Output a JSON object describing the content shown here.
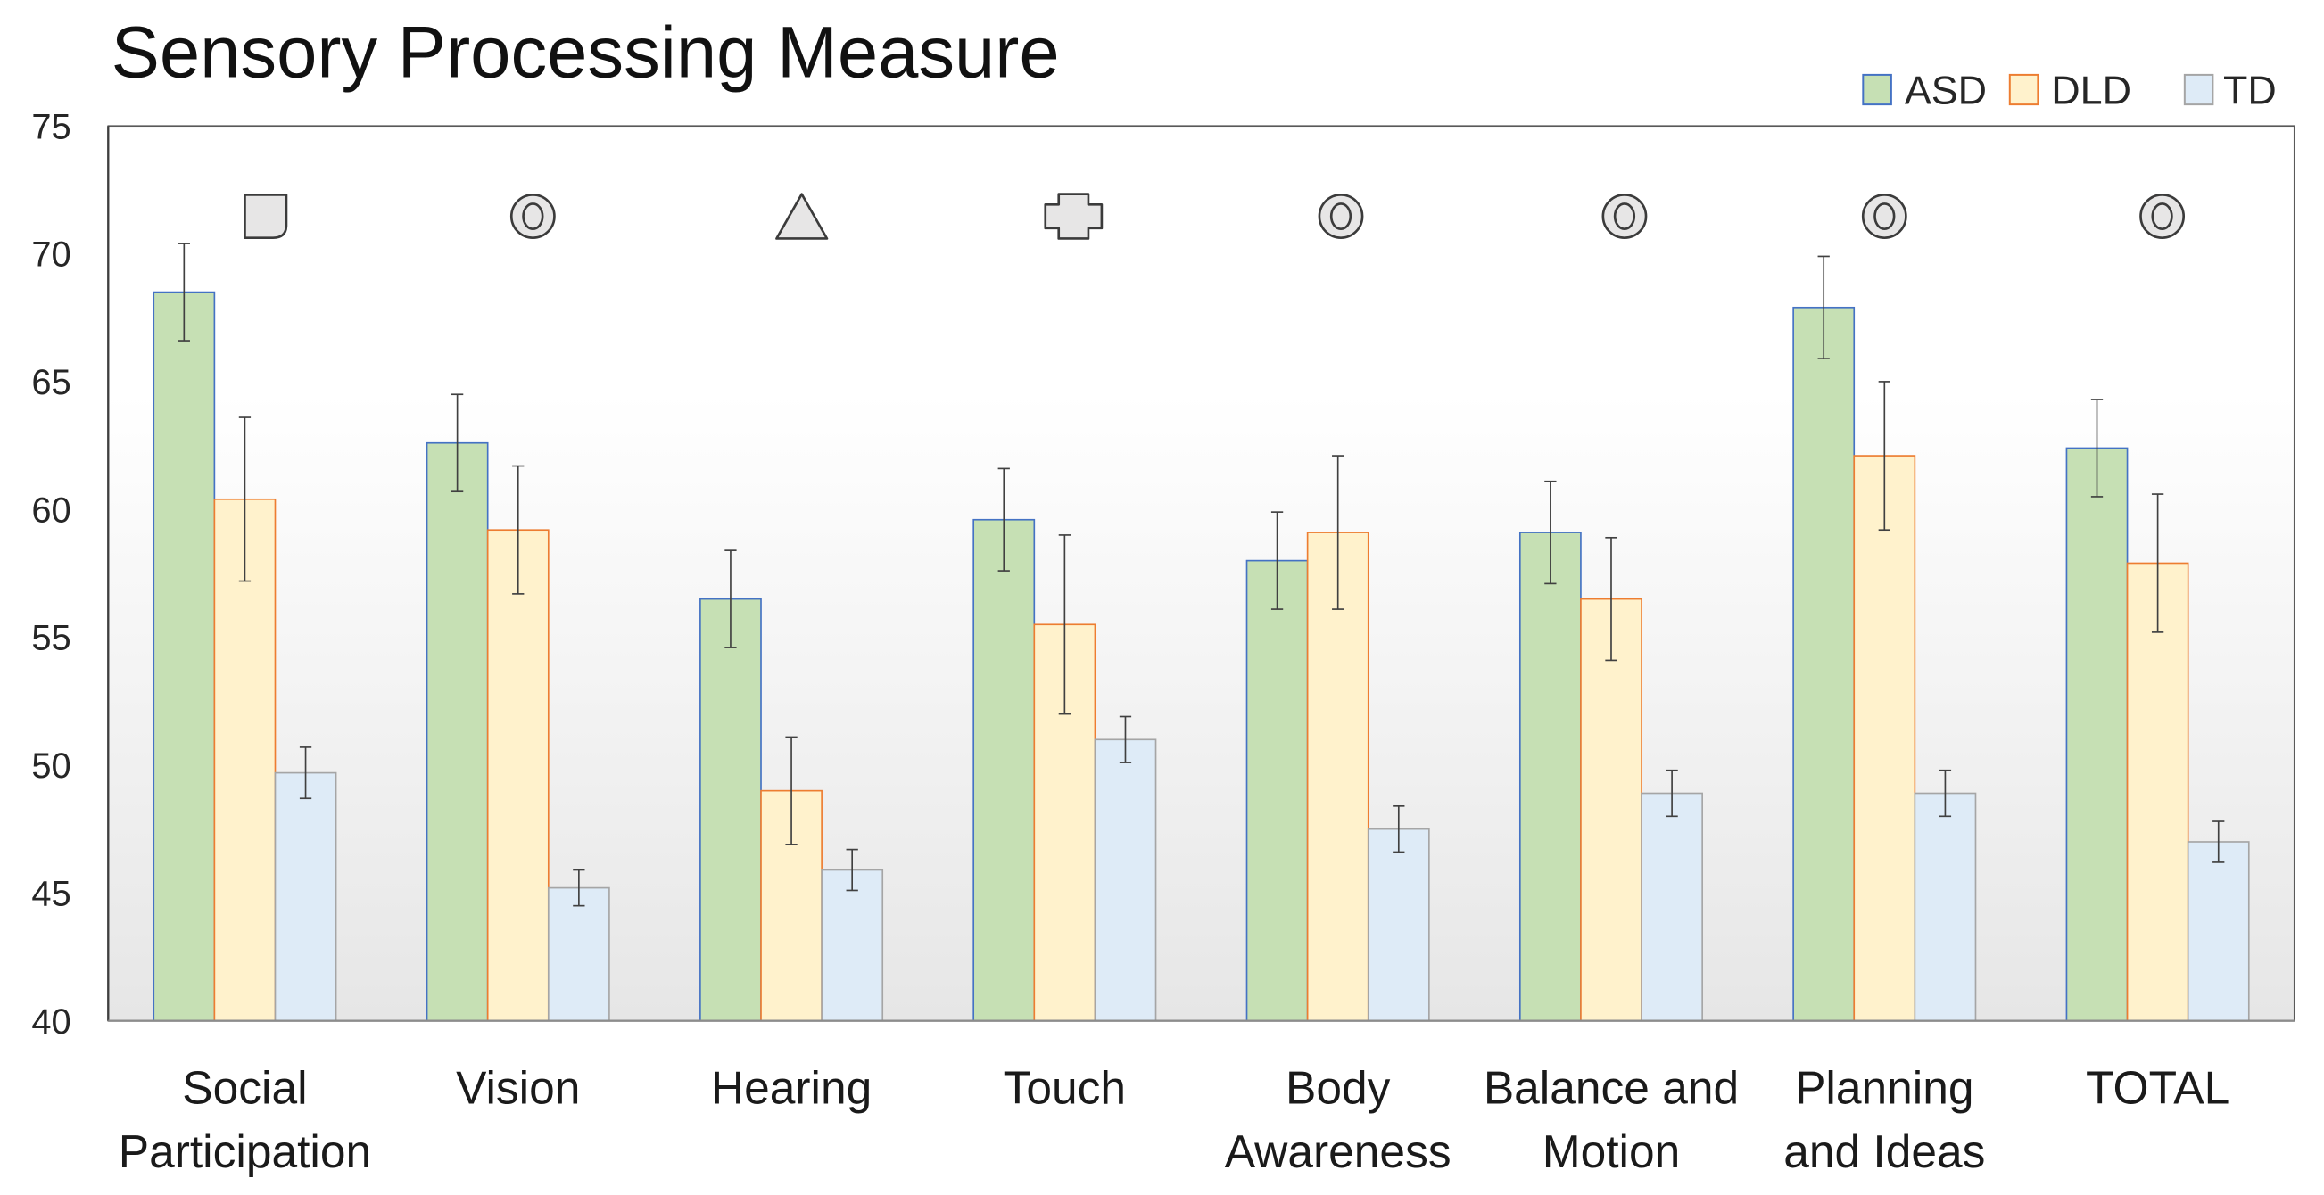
{
  "chart_data": {
    "type": "bar",
    "title": "Sensory Processing Measure",
    "xlabel": "",
    "ylabel": "",
    "ylim": [
      40,
      75
    ],
    "yticks": [
      40,
      45,
      50,
      55,
      60,
      65,
      70,
      75
    ],
    "grid": false,
    "legend": "top-right",
    "categories": [
      "Social Participation",
      "Vision",
      "Hearing",
      "Touch",
      "Body Awareness",
      "Balance and Motion",
      "Planning and Ideas",
      "TOTAL"
    ],
    "series": [
      {
        "name": "ASD",
        "values": [
          68.5,
          62.6,
          56.5,
          59.6,
          58.0,
          59.1,
          67.9,
          62.4
        ],
        "errors": [
          1.9,
          1.9,
          1.9,
          2.0,
          1.9,
          2.0,
          2.0,
          1.9
        ],
        "fill": "#c6e0b4",
        "stroke": "#4472c4"
      },
      {
        "name": "DLD",
        "values": [
          60.4,
          59.2,
          49.0,
          55.5,
          59.1,
          56.5,
          62.1,
          57.9
        ],
        "errors": [
          3.2,
          2.5,
          2.1,
          3.5,
          3.0,
          2.4,
          2.9,
          2.7
        ],
        "fill": "#fff2cc",
        "stroke": "#ed7d31"
      },
      {
        "name": "TD",
        "values": [
          49.7,
          45.2,
          45.9,
          51.0,
          47.5,
          48.9,
          48.9,
          47.0
        ],
        "errors": [
          1.0,
          0.7,
          0.8,
          0.9,
          0.9,
          0.9,
          0.9,
          0.8
        ],
        "fill": "#deebf7",
        "stroke": "#a5a5a5"
      }
    ],
    "group_markers": [
      "rounded-square-icon",
      "double-circle-icon",
      "triangle-icon",
      "cross-icon",
      "double-circle-icon",
      "double-circle-icon",
      "double-circle-icon",
      "double-circle-icon"
    ],
    "colors": {
      "error_bar": "#404040",
      "marker_fill": "#e7e6e6",
      "marker_stroke": "#3b3b3b",
      "plot_background_top": "#ffffff",
      "plot_background_bottom": "#e6e6e6",
      "frame": "#595959",
      "x_axis": "#8c8c8c"
    }
  }
}
